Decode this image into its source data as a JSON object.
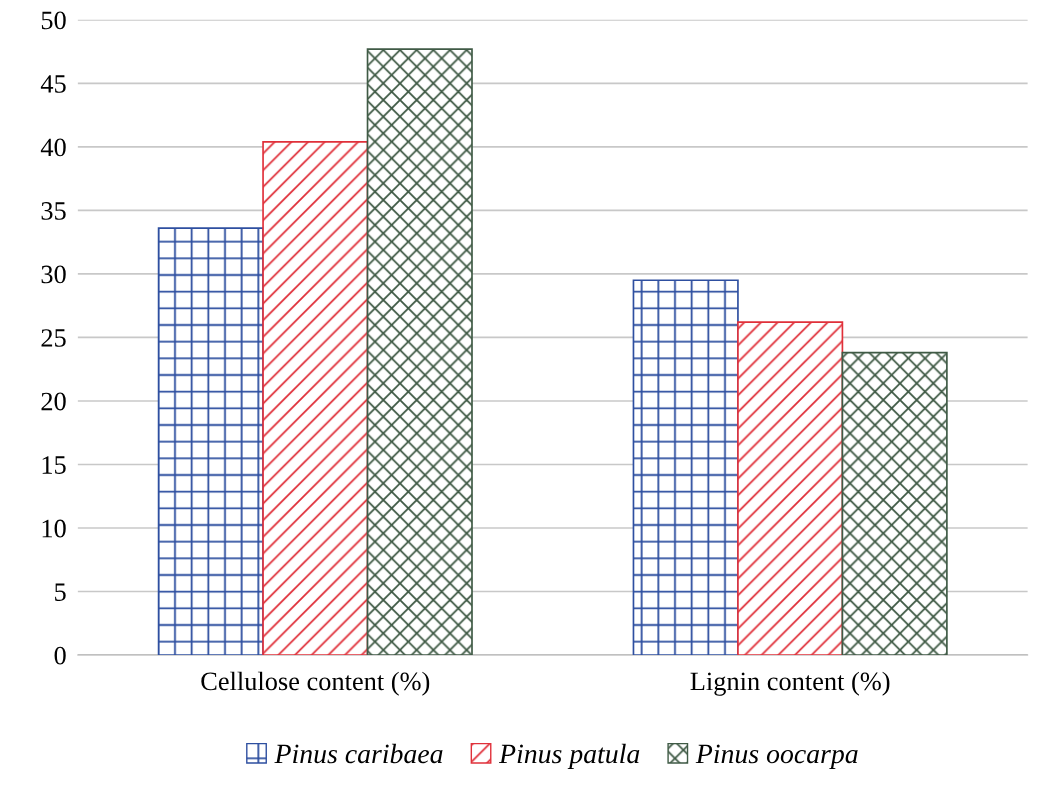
{
  "chart_data": {
    "type": "bar",
    "categories": [
      "Cellulose content (%)",
      "Lignin content (%)"
    ],
    "series": [
      {
        "name": "Pinus caribaea",
        "color": "#2e4fa0",
        "values": [
          33.6,
          29.5
        ]
      },
      {
        "name": "Pinus patula",
        "color": "#e0303a",
        "values": [
          40.4,
          26.2
        ]
      },
      {
        "name": "Pinus oocarpa",
        "color": "#3f5a45",
        "values": [
          47.7,
          23.8
        ]
      }
    ],
    "ylim": [
      0,
      50
    ],
    "yticks": [
      0,
      5,
      10,
      15,
      20,
      25,
      30,
      35,
      40,
      45,
      50
    ],
    "grid": "y",
    "legend": "bottom"
  }
}
